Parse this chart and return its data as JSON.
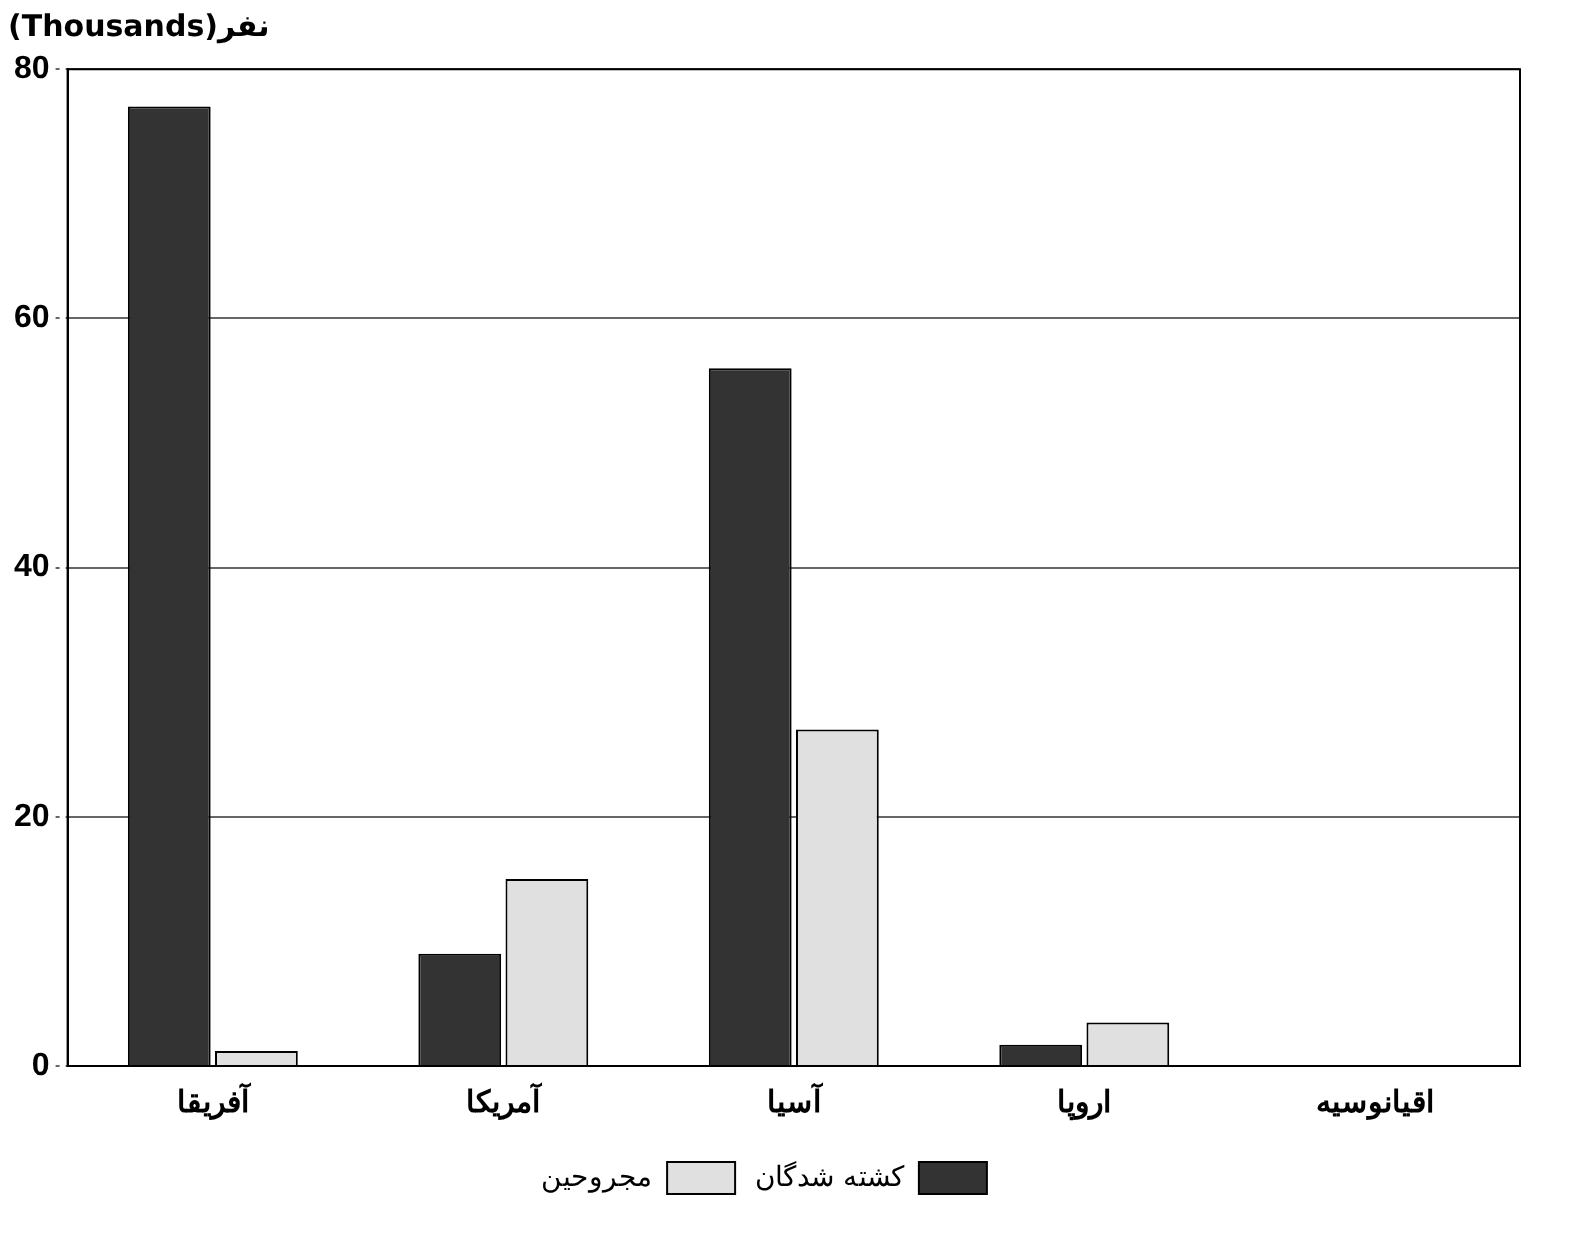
{
  "chart_data": {
    "type": "bar",
    "ylabel": "نفر(Thousands)",
    "categories": [
      "آفریقا",
      "آمریکا",
      "آسیا",
      "اروپا",
      "اقیانوسیه"
    ],
    "series": [
      {
        "name": "کشته شدگان",
        "color": "#333333",
        "values": [
          77,
          9,
          56,
          1.7,
          0
        ]
      },
      {
        "name": "مجروحین",
        "color": "#e0e0e0",
        "values": [
          1.2,
          15,
          27,
          3.5,
          0
        ]
      }
    ],
    "ylim": [
      0,
      80
    ],
    "yticks": [
      0,
      20,
      40,
      60,
      80
    ],
    "grid": "y",
    "line_style": "dotted",
    "legend": "bottom"
  }
}
